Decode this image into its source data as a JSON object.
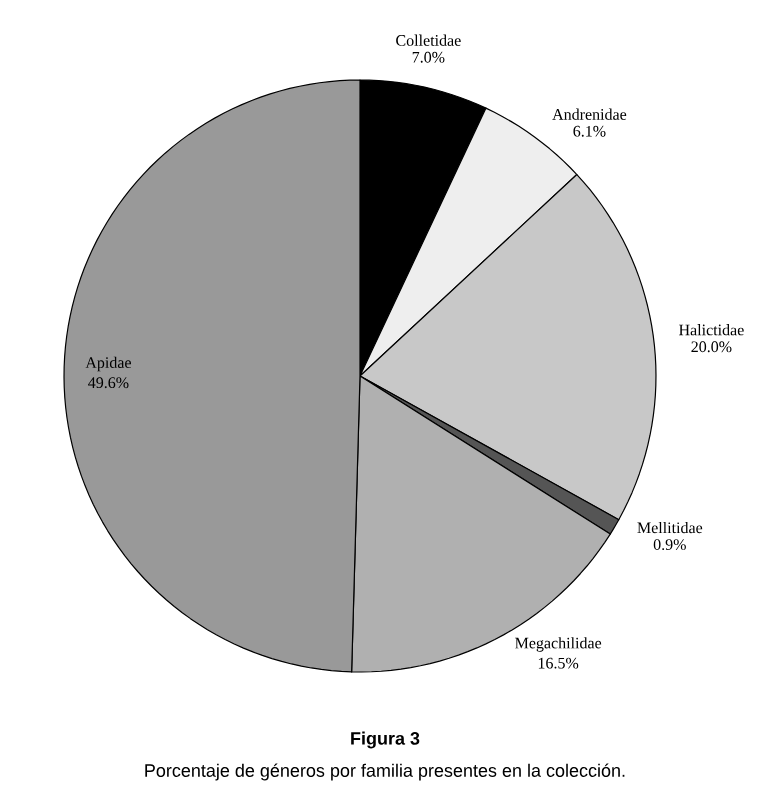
{
  "chart_data": {
    "type": "pie",
    "title": "Figura 3",
    "subtitle": "Porcentaje de géneros por familia presentes en la colección.",
    "categories": [
      "Colletidae",
      "Andrenidae",
      "Halictidae",
      "Mellitidae",
      "Megachilidae",
      "Apidae"
    ],
    "values": [
      7.0,
      6.1,
      20.0,
      0.9,
      16.5,
      49.6
    ],
    "colors": [
      "#000000",
      "#eeeeee",
      "#c8c8c8",
      "#555555",
      "#b0b0b0",
      "#999999"
    ],
    "value_labels": [
      "7.0%",
      "6.1%",
      "20.0%",
      "0.9%",
      "16.5%",
      "49.6%"
    ]
  }
}
